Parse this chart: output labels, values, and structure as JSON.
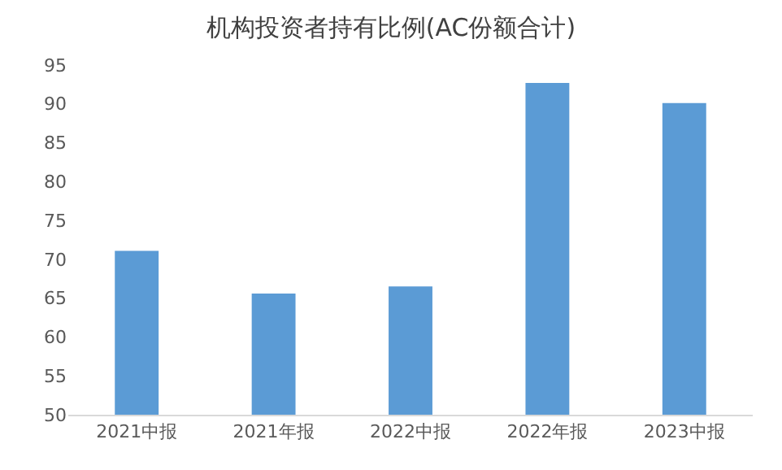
{
  "chart_data": {
    "type": "bar",
    "title": "机构投资者持有比例(AC份额合计)",
    "categories": [
      "2021中报",
      "2021年报",
      "2022中报",
      "2022年报",
      "2023中报"
    ],
    "values": [
      71.1,
      65.6,
      66.5,
      92.7,
      90.1
    ],
    "color": "#5b9bd5",
    "ylim": [
      50,
      95
    ],
    "yticks": [
      50,
      55,
      60,
      65,
      70,
      75,
      80,
      85,
      90,
      95
    ],
    "grid": false
  }
}
